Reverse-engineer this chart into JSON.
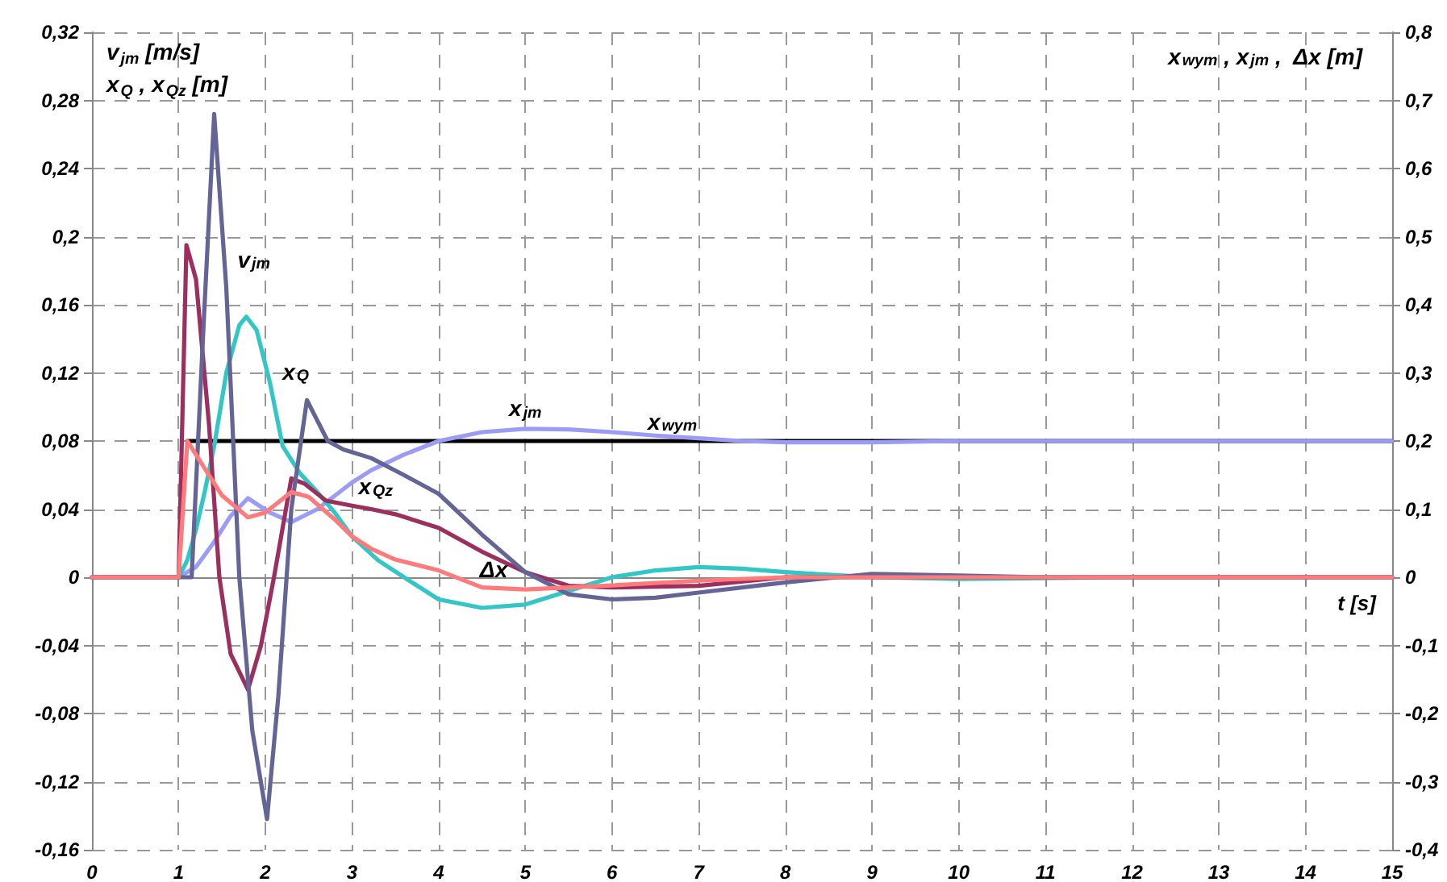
{
  "chart_data": {
    "type": "line",
    "xlabel": "t [s]",
    "ylabel": "v$_{jm}$ [m/s]\nx$_{Q}$ , x$_{Qz}$ [m]",
    "y2label": "x$_{wym}$ , x$_{jm}$ ,  Δx [m]",
    "xlim": [
      0,
      15
    ],
    "xticks": [
      0,
      1,
      2,
      3,
      4,
      5,
      6,
      7,
      8,
      9,
      10,
      11,
      12,
      13,
      14,
      15
    ],
    "ylim": [
      -0.16,
      0.32
    ],
    "yticks": [
      {
        "value": -0.16,
        "label": "-0,16"
      },
      {
        "value": -0.12,
        "label": "-0,12"
      },
      {
        "value": -0.08,
        "label": "-0,08"
      },
      {
        "value": -0.04,
        "label": "-0,04"
      },
      {
        "value": 0,
        "label": "0"
      },
      {
        "value": 0.04,
        "label": "0,04"
      },
      {
        "value": 0.08,
        "label": "0,08"
      },
      {
        "value": 0.12,
        "label": "0,12"
      },
      {
        "value": 0.16,
        "label": "0,16"
      },
      {
        "value": 0.2,
        "label": "0,2"
      },
      {
        "value": 0.24,
        "label": "0,24"
      },
      {
        "value": 0.28,
        "label": "0,28"
      },
      {
        "value": 0.32,
        "label": "0,32"
      }
    ],
    "y2lim": [
      -0.4,
      0.8
    ],
    "y2ticks": [
      {
        "value": -0.4,
        "label": "-0,4"
      },
      {
        "value": -0.3,
        "label": "-0,3"
      },
      {
        "value": -0.2,
        "label": "-0,2"
      },
      {
        "value": -0.1,
        "label": "-0,1"
      },
      {
        "value": 0,
        "label": "0"
      },
      {
        "value": 0.1,
        "label": "0,1"
      },
      {
        "value": 0.2,
        "label": "0,2"
      },
      {
        "value": 0.3,
        "label": "0,3"
      },
      {
        "value": 0.4,
        "label": "0,4"
      },
      {
        "value": 0.5,
        "label": "0,5"
      },
      {
        "value": 0.6,
        "label": "0,6"
      },
      {
        "value": 0.7,
        "label": "0,7"
      },
      {
        "value": 0.8,
        "label": "0,8"
      }
    ],
    "grid": true,
    "marker": "none",
    "line_style": "solid",
    "series": [
      {
        "name": "x$_{wym}$",
        "color": "#000000",
        "axis": "y2",
        "x": [
          1.1,
          15
        ],
        "values": [
          0.2,
          0.2
        ]
      },
      {
        "name": "x$_{jm}$",
        "color": "#9c9cf6",
        "axis": "y2",
        "x": [
          0,
          1,
          1.2,
          1.4,
          1.6,
          1.8,
          2.05,
          2.3,
          2.6,
          3,
          3.22,
          3.6,
          4,
          4.5,
          5,
          5.5,
          6,
          6.5,
          7,
          7.5,
          8,
          9,
          10,
          15
        ],
        "values": [
          0,
          0,
          0.015,
          0.05,
          0.09,
          0.116,
          0.095,
          0.081,
          0.1,
          0.139,
          0.157,
          0.18,
          0.2,
          0.213,
          0.218,
          0.217,
          0.213,
          0.208,
          0.204,
          0.2,
          0.198,
          0.198,
          0.2,
          0.2
        ]
      },
      {
        "name": "x$_{Q}$",
        "color": "#33c6c6",
        "x": [
          0,
          1,
          1.1,
          1.2,
          1.3,
          1.41,
          1.55,
          1.7,
          1.78,
          1.9,
          2.05,
          2.2,
          2.4,
          2.6,
          2.8,
          3,
          3.3,
          3.6,
          4,
          4.5,
          5,
          5.5,
          6,
          6.5,
          7,
          7.5,
          8,
          9,
          10,
          12,
          15
        ],
        "values": [
          0,
          0,
          0.01,
          0.028,
          0.05,
          0.077,
          0.12,
          0.148,
          0.153,
          0.145,
          0.115,
          0.077,
          0.061,
          0.05,
          0.038,
          0.024,
          0.01,
          0,
          -0.013,
          -0.018,
          -0.016,
          -0.008,
          0,
          0.004,
          0.006,
          0.005,
          0.003,
          0,
          -0.001,
          0,
          0
        ]
      },
      {
        "name": "x$_{Qz}$",
        "color": "#9b2f5e",
        "x": [
          0,
          1,
          1.09,
          1.2,
          1.35,
          1.47,
          1.6,
          1.8,
          1.95,
          2.1,
          2.3,
          2.45,
          2.7,
          3,
          3.22,
          3.5,
          4,
          4.5,
          5,
          5.5,
          6,
          7,
          8,
          15
        ],
        "values": [
          0,
          0,
          0.195,
          0.175,
          0.09,
          0,
          -0.045,
          -0.066,
          -0.04,
          0,
          0.058,
          0.055,
          0.045,
          0.042,
          0.04,
          0.037,
          0.029,
          0.015,
          0.003,
          -0.005,
          -0.006,
          -0.005,
          0,
          0
        ]
      },
      {
        "name": "v$_{jm}$",
        "color": "#646496",
        "x": [
          0,
          1.15,
          1.28,
          1.41,
          1.55,
          1.7,
          1.85,
          2.02,
          2.15,
          2.3,
          2.48,
          2.72,
          2.9,
          3.22,
          3.6,
          4,
          4.5,
          5,
          5.5,
          6,
          6.5,
          7,
          8,
          9,
          10,
          11,
          15
        ],
        "values": [
          0,
          0,
          0.14,
          0.272,
          0.17,
          0,
          -0.09,
          -0.142,
          -0.07,
          0.04,
          0.104,
          0.08,
          0.075,
          0.07,
          0.06,
          0.049,
          0.025,
          0.003,
          -0.01,
          -0.013,
          -0.012,
          -0.009,
          -0.003,
          0.002,
          0.001,
          0,
          0
        ]
      },
      {
        "name": "Δx",
        "color": "#ff7b7b",
        "axis": "y2",
        "x": [
          0,
          1,
          1.1,
          1.3,
          1.5,
          1.8,
          2,
          2.3,
          2.5,
          2.8,
          3,
          3.22,
          3.5,
          4,
          4.5,
          5,
          6,
          7,
          8,
          15
        ],
        "values": [
          0,
          0,
          0.2,
          0.16,
          0.12,
          0.088,
          0.095,
          0.125,
          0.118,
          0.085,
          0.06,
          0.042,
          0.026,
          0.01,
          -0.015,
          -0.018,
          -0.012,
          -0.005,
          0,
          0
        ]
      }
    ]
  }
}
